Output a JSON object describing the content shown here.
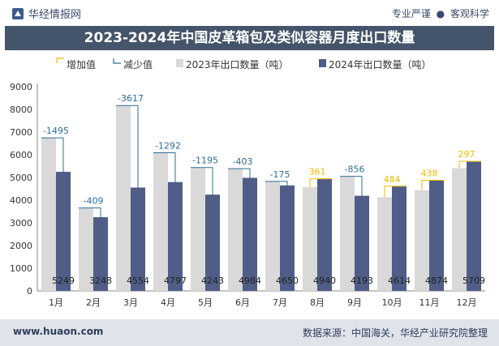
{
  "header": {
    "brand": "华经情报网",
    "slogan_left": "专业严谨",
    "slogan_right": "客观科学"
  },
  "title": "2023-2024年中国皮革箱包及类似容器月度出口数量",
  "footer": {
    "site": "www.huaon.com",
    "source": "数据来源：中国海关，华经产业研究院整理"
  },
  "colors": {
    "bar2023": "#d9d9d9",
    "bar2024": "#4f5d87",
    "increase": "#f5b800",
    "decrease": "#2e6d96",
    "title_bg": "#44546a"
  },
  "chart_data": {
    "type": "bar",
    "title": "2023-2024年中国皮革箱包及类似容器月度出口数量",
    "categories": [
      "1月",
      "2月",
      "3月",
      "4月",
      "5月",
      "6月",
      "7月",
      "8月",
      "9月",
      "10月",
      "11月",
      "12月"
    ],
    "series": [
      {
        "name": "2023年出口数量（吨）",
        "values": [
          6744,
          3657,
          8171,
          6089,
          5438,
          5387,
          4825,
          4579,
          5049,
          4130,
          4436,
          5412
        ]
      },
      {
        "name": "2024年出口数量（吨）",
        "values": [
          5249,
          3248,
          4554,
          4797,
          4243,
          4984,
          4650,
          4940,
          4193,
          4614,
          4874,
          5709
        ]
      }
    ],
    "change": {
      "names": {
        "increase": "增加值",
        "decrease": "减少值"
      },
      "labels": [
        "-1495",
        "-409",
        "-3617",
        "-1292",
        "-1195",
        "-403",
        "-175",
        "361",
        "-856",
        "484",
        "438",
        "297"
      ]
    },
    "ylim": [
      0,
      9000
    ],
    "yticks": [
      0,
      1000,
      2000,
      3000,
      4000,
      5000,
      6000,
      7000,
      8000,
      9000
    ],
    "legend_position": "top"
  }
}
